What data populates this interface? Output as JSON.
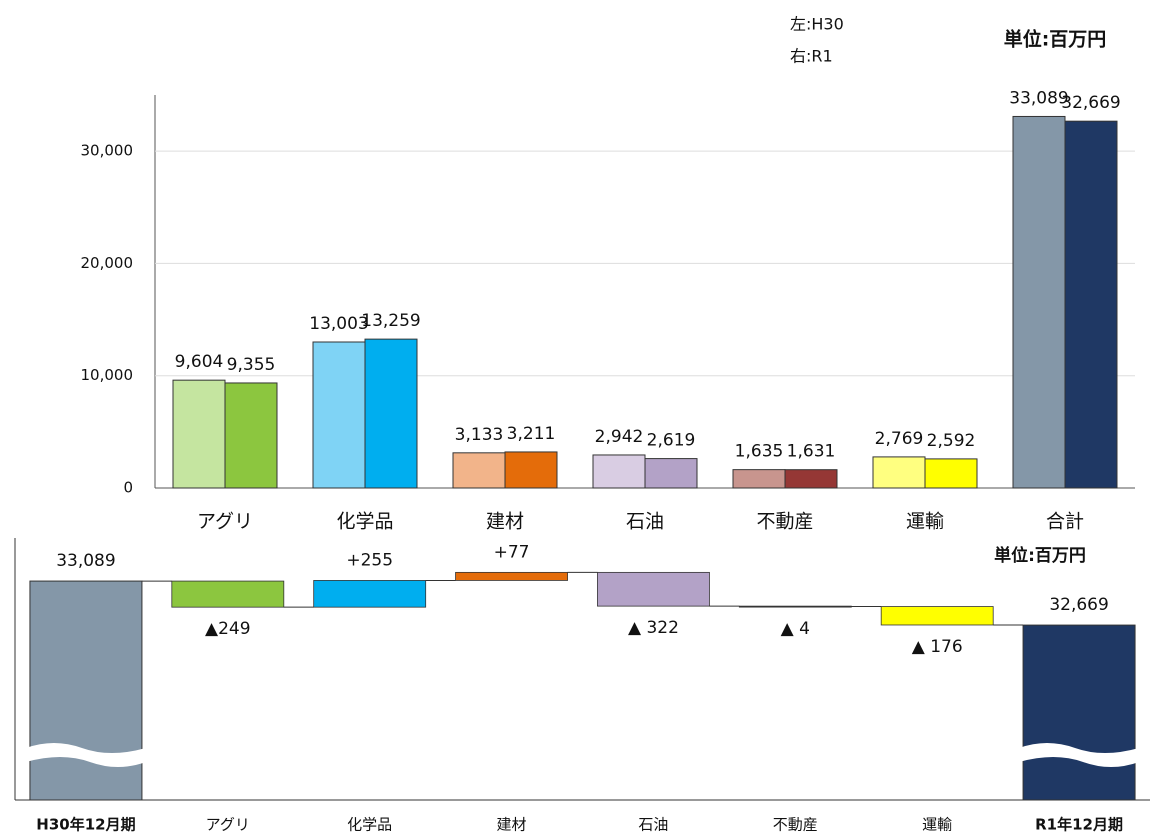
{
  "chart_data": [
    {
      "type": "grouped_bar",
      "legend": [
        "左:H30",
        "右:R1"
      ],
      "subtitle": "単位:百万円",
      "categories": [
        "アグリ",
        "化学品",
        "建材",
        "石油",
        "不動産",
        "運輸",
        "合計"
      ],
      "series": [
        {
          "name": "H30",
          "colors": [
            "#c5e5a0",
            "#7fd3f5",
            "#f2b48a",
            "#d9cde3",
            "#c8958e",
            "#ffff80",
            "#8497a8"
          ],
          "values": [
            9604,
            13003,
            3133,
            2942,
            1635,
            2769,
            33089
          ],
          "value_labels": [
            "9,604",
            "13,003",
            "3,133",
            "2,942",
            "1,635",
            "2,769",
            "33,089"
          ]
        },
        {
          "name": "R1",
          "colors": [
            "#8cc63f",
            "#00aeef",
            "#e46c0a",
            "#b3a2c7",
            "#953735",
            "#ffff00",
            "#1f3864"
          ],
          "values": [
            9355,
            13259,
            3211,
            2619,
            1631,
            2592,
            32669
          ],
          "value_labels": [
            "9,355",
            "13,259",
            "3,211",
            "2,619",
            "1,631",
            "2,592",
            "32,669"
          ]
        }
      ],
      "ylim": [
        0,
        35000
      ],
      "yticks": [
        0,
        {
          "value": 10000,
          "label": "10,000"
        },
        {
          "value": 20000,
          "label": "20,000"
        },
        {
          "value": 30000,
          "label": "30,000"
        }
      ],
      "grid": true
    },
    {
      "type": "waterfall",
      "subtitle": "単位:百万円",
      "categories": [
        "H30年12月期",
        "アグリ",
        "化学品",
        "建材",
        "石油",
        "不動産",
        "運輸",
        "R1年12月期"
      ],
      "values": [
        33089,
        -249,
        255,
        77,
        -322,
        -4,
        -176,
        32669
      ],
      "value_labels": [
        "33,089",
        "▲249",
        "+255",
        "+77",
        "▲ 322",
        "▲ 4",
        "▲ 176",
        "32,669"
      ],
      "measure": [
        "total",
        "relative",
        "relative",
        "relative",
        "relative",
        "relative",
        "relative",
        "total"
      ],
      "colors": [
        "#8497a8",
        "#8cc63f",
        "#00aeef",
        "#e46c0a",
        "#b3a2c7",
        "#404040",
        "#ffff00",
        "#1f3864"
      ],
      "ylim": [
        31000,
        33500
      ]
    }
  ]
}
